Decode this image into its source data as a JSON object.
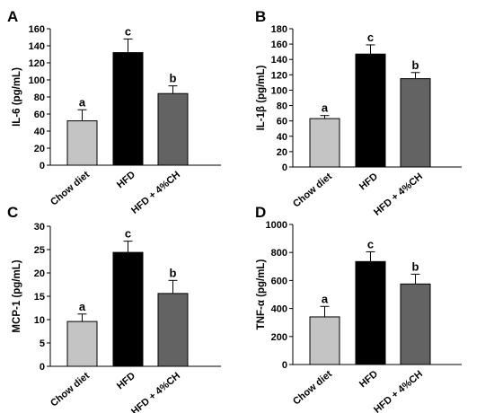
{
  "chart_data": [
    {
      "panel": "A",
      "type": "bar",
      "ylabel": "IL-6 (pg/mL)",
      "ylim": [
        0,
        160
      ],
      "yticks": [
        0,
        20,
        40,
        60,
        80,
        100,
        120,
        140,
        160
      ],
      "categories": [
        "Chow diet",
        "HFD",
        "HFD + 4%CH"
      ],
      "values": [
        52,
        132,
        84
      ],
      "errors": [
        13,
        16,
        9
      ],
      "labels": [
        "a",
        "c",
        "b"
      ],
      "colors": [
        "#c4c4c4",
        "#000000",
        "#636363"
      ]
    },
    {
      "panel": "B",
      "type": "bar",
      "ylabel": "IL-1β (pg/mL)",
      "ylim": [
        0,
        180
      ],
      "yticks": [
        0,
        20,
        40,
        60,
        80,
        100,
        120,
        140,
        160,
        180
      ],
      "categories": [
        "Chow diet",
        "HFD",
        "HFD + 4%CH"
      ],
      "values": [
        63,
        147,
        115
      ],
      "errors": [
        4,
        12,
        8
      ],
      "labels": [
        "a",
        "c",
        "b"
      ],
      "colors": [
        "#c4c4c4",
        "#000000",
        "#636363"
      ]
    },
    {
      "panel": "C",
      "type": "bar",
      "ylabel": "MCP-1 (pg/mL)",
      "ylim": [
        0,
        30
      ],
      "yticks": [
        0,
        5,
        10,
        15,
        20,
        25,
        30
      ],
      "categories": [
        "Chow diet",
        "HFD",
        "HFD + 4%CH"
      ],
      "values": [
        9.6,
        24.4,
        15.6
      ],
      "errors": [
        1.6,
        2.4,
        2.8
      ],
      "labels": [
        "a",
        "c",
        "b"
      ],
      "colors": [
        "#c4c4c4",
        "#000000",
        "#636363"
      ]
    },
    {
      "panel": "D",
      "type": "bar",
      "ylabel": "TNF-α (pg/mL)",
      "ylim": [
        0,
        1000
      ],
      "yticks": [
        0,
        200,
        400,
        600,
        800,
        1000
      ],
      "categories": [
        "Chow diet",
        "HFD",
        "HFD + 4%CH"
      ],
      "values": [
        340,
        735,
        575
      ],
      "errors": [
        75,
        70,
        70
      ],
      "labels": [
        "a",
        "c",
        "b"
      ],
      "colors": [
        "#c4c4c4",
        "#000000",
        "#636363"
      ]
    }
  ]
}
